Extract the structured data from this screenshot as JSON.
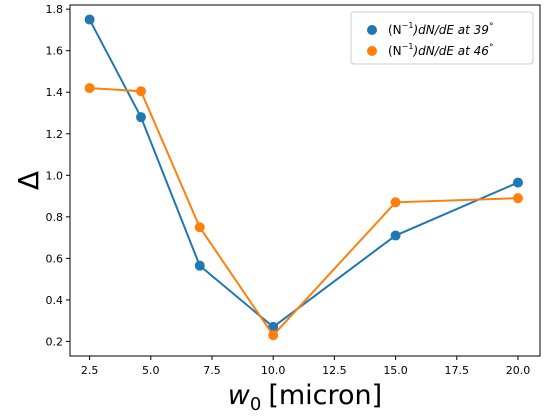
{
  "chart_data": {
    "type": "line",
    "xlabel_main": "w",
    "xlabel_sub": "0",
    "xlabel_unit": "[micron]",
    "ylabel": "Δ",
    "xlim": [
      1.7,
      20.9
    ],
    "ylim": [
      0.13,
      1.82
    ],
    "xticks": [
      "2.5",
      "5.0",
      "7.5",
      "10.0",
      "12.5",
      "15.0",
      "17.5",
      "20.0"
    ],
    "xtick_values": [
      2.5,
      5.0,
      7.5,
      10.0,
      12.5,
      15.0,
      17.5,
      20.0
    ],
    "yticks": [
      "0.2",
      "0.4",
      "0.6",
      "0.8",
      "1.0",
      "1.2",
      "1.4",
      "1.6",
      "1.8"
    ],
    "ytick_values": [
      0.2,
      0.4,
      0.6,
      0.8,
      1.0,
      1.2,
      1.4,
      1.6,
      1.8
    ],
    "legend_position": "top-right",
    "grid": false,
    "series": [
      {
        "name_prefix": "(N",
        "name_sup": "−1",
        "name_mid": ")dN/dE at  39",
        "name_deg": "°",
        "color": "#1f77b4",
        "x": [
          2.5,
          4.6,
          7.0,
          10.0,
          15.0,
          20.0
        ],
        "y": [
          1.75,
          1.28,
          0.565,
          0.27,
          0.71,
          0.965
        ]
      },
      {
        "name_prefix": "(N",
        "name_sup": "−1",
        "name_mid": ")dN/dE at  46",
        "name_deg": "°",
        "color": "#ff7f0e",
        "x": [
          2.5,
          4.6,
          7.0,
          10.0,
          15.0,
          20.0
        ],
        "y": [
          1.42,
          1.405,
          0.75,
          0.23,
          0.87,
          0.89
        ]
      }
    ]
  }
}
